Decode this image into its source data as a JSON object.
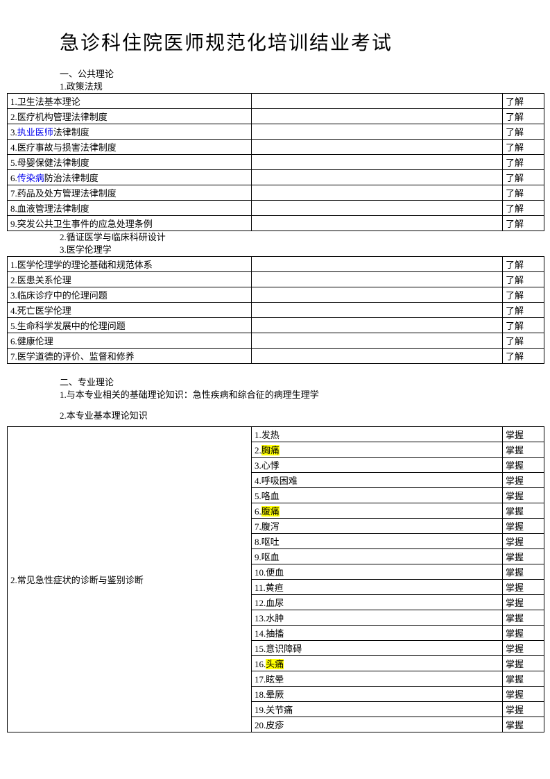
{
  "title": "急诊科住院医师规范化培训结业考试",
  "section1": {
    "header": "一、公共理论",
    "sub1": "1.政策法规",
    "sub2": "2.循证医学与临床科研设计",
    "sub3": "3.医学伦理学"
  },
  "table1": {
    "rows": [
      {
        "num": "1.",
        "text": "卫生法基本理论",
        "level": "了解"
      },
      {
        "num": "2.",
        "text": "医疗机构管理法律制度",
        "level": "了解"
      },
      {
        "num": "3.",
        "prefix": "",
        "link": "执业医师",
        "suffix": "法律制度",
        "level": "了解"
      },
      {
        "num": "4.",
        "text": "医疗事故与损害法律制度",
        "level": "了解"
      },
      {
        "num": "5.",
        "text": "母婴保健法律制度",
        "level": "了解"
      },
      {
        "num": "6.",
        "prefix": "",
        "link": "传染病",
        "suffix": "防治法律制度",
        "level": "了解"
      },
      {
        "num": "7.",
        "text": "药品及处方管理法律制度",
        "level": "了解"
      },
      {
        "num": "8.",
        "text": "血液管理法律制度",
        "level": "了解"
      },
      {
        "num": "9.",
        "text": "突发公共卫生事件的应急处理条例",
        "level": "了解"
      }
    ]
  },
  "table2": {
    "rows": [
      {
        "num": "1.",
        "text": "医学伦理学的理论基础和规范体系",
        "level": "了解"
      },
      {
        "num": "2.",
        "text": "医患关系伦理",
        "level": "了解"
      },
      {
        "num": "3.",
        "text": "临床诊疗中的伦理问题",
        "level": "了解"
      },
      {
        "num": "4.",
        "text": "死亡医学伦理",
        "level": "了解"
      },
      {
        "num": "5.",
        "text": "生命科学发展中的伦理问题",
        "level": "了解"
      },
      {
        "num": "6.",
        "text": "健康伦理",
        "level": "了解"
      },
      {
        "num": "7.",
        "text": "医学道德的评价、监督和修养",
        "level": "了解"
      }
    ]
  },
  "section2": {
    "header": "二、专业理论",
    "sub1": "1.与本专业相关的基础理论知识：急性疾病和综合征的病理生理学",
    "sub2": "2.本专业基本理论知识"
  },
  "table3": {
    "leftLabel": "2.常见急性症状的诊断与鉴别诊断",
    "rows": [
      {
        "num": "1.",
        "text": "发热",
        "level": "掌握"
      },
      {
        "num": "2.",
        "text": "胸痛",
        "hl": true,
        "level": "掌握"
      },
      {
        "num": "3.",
        "text": "心悸",
        "level": "掌握"
      },
      {
        "num": "4.",
        "text": "呼吸困难",
        "level": "掌握"
      },
      {
        "num": "5.",
        "text": "咯血",
        "level": "掌握"
      },
      {
        "num": "6.",
        "text": "腹痛",
        "hl": true,
        "level": "掌握"
      },
      {
        "num": "7.",
        "text": "腹泻",
        "level": "掌握"
      },
      {
        "num": "8.",
        "text": "呕吐",
        "level": "掌握"
      },
      {
        "num": "9.",
        "text": "呕血",
        "level": "掌握"
      },
      {
        "num": "10.",
        "text": "便血",
        "level": "掌握"
      },
      {
        "num": "11.",
        "text": "黄疸",
        "level": "掌握"
      },
      {
        "num": "12.",
        "text": "血尿",
        "level": "掌握"
      },
      {
        "num": "13.",
        "text": "水肿",
        "level": "掌握"
      },
      {
        "num": "14.",
        "text": "抽搐",
        "level": "掌握"
      },
      {
        "num": "15.",
        "text": "意识障碍",
        "level": "掌握"
      },
      {
        "num": "16.",
        "text": "头痛",
        "hl": true,
        "level": "掌握"
      },
      {
        "num": "17.",
        "text": "眩晕",
        "level": "掌握"
      },
      {
        "num": "18.",
        "text": "晕厥",
        "level": "掌握"
      },
      {
        "num": "19.",
        "text": "关节痛",
        "level": "掌握"
      },
      {
        "num": "20.",
        "text": "皮疹",
        "level": "掌握"
      }
    ]
  }
}
